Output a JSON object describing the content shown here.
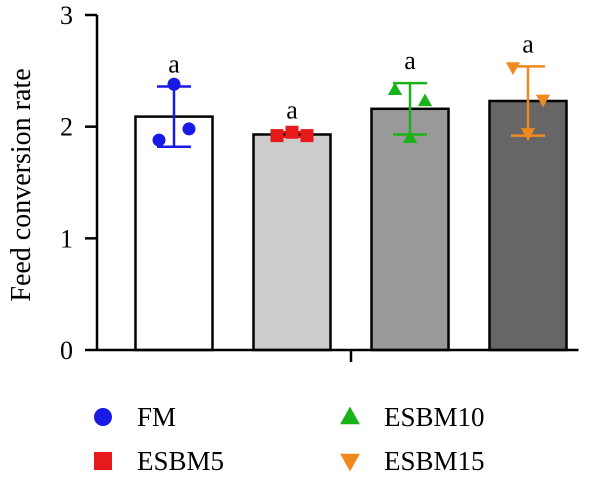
{
  "chart_data": {
    "type": "bar",
    "title": "",
    "xlabel": "",
    "ylabel": "Feed conversion rate",
    "ylim": [
      0,
      3
    ],
    "yticks": [
      0,
      1,
      2,
      3
    ],
    "categories": [
      "FM",
      "ESBM5",
      "ESBM10",
      "ESBM15"
    ],
    "values": [
      2.09,
      1.93,
      2.16,
      2.23
    ],
    "error_sd": [
      0.27,
      0.02,
      0.23,
      0.31
    ],
    "significance": [
      "a",
      "a",
      "a",
      "a"
    ],
    "points": [
      [
        1.88,
        2.38,
        1.98
      ],
      [
        1.92,
        1.95,
        1.92
      ],
      [
        2.33,
        1.9,
        2.23
      ],
      [
        2.53,
        1.94,
        2.24
      ]
    ],
    "bar_fills": [
      "#ffffff",
      "#cccccc",
      "#999999",
      "#666666"
    ],
    "marker_colors": [
      "#1a1ae6",
      "#e61a1a",
      "#19b319",
      "#f08a1e"
    ],
    "markers": [
      "circle",
      "square",
      "triangle-up",
      "triangle-down"
    ],
    "grid": false,
    "legend": {
      "placement": "bottom",
      "entries": [
        "FM",
        "ESBM5",
        "ESBM10",
        "ESBM15"
      ]
    }
  }
}
